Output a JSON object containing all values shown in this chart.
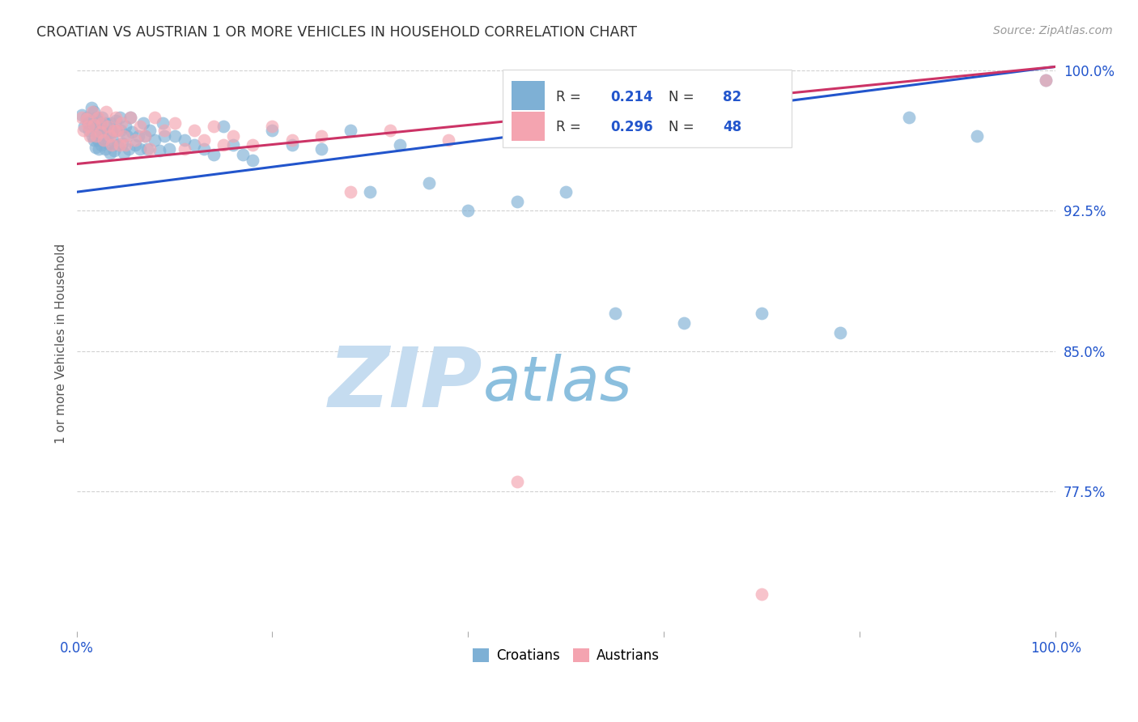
{
  "title": "CROATIAN VS AUSTRIAN 1 OR MORE VEHICLES IN HOUSEHOLD CORRELATION CHART",
  "source": "Source: ZipAtlas.com",
  "ylabel": "1 or more Vehicles in Household",
  "xlim": [
    0.0,
    1.0
  ],
  "ylim": [
    0.7,
    1.008
  ],
  "yticks": [
    0.775,
    0.85,
    0.925,
    1.0
  ],
  "ytick_labels": [
    "77.5%",
    "85.0%",
    "92.5%",
    "100.0%"
  ],
  "xticks": [
    0.0,
    0.2,
    0.4,
    0.6,
    0.8,
    1.0
  ],
  "xtick_labels": [
    "0.0%",
    "",
    "",
    "",
    "",
    "100.0%"
  ],
  "croatians_R": 0.214,
  "croatians_N": 82,
  "austrians_R": 0.296,
  "austrians_N": 48,
  "croatian_color": "#7EB0D5",
  "austrian_color": "#F4A4B0",
  "trendline_croatian_color": "#2255CC",
  "trendline_austrian_color": "#CC3366",
  "croatian_trendline": [
    [
      0.0,
      0.935
    ],
    [
      1.0,
      1.002
    ]
  ],
  "austrian_trendline": [
    [
      0.0,
      0.95
    ],
    [
      1.0,
      1.002
    ]
  ],
  "croatian_x": [
    0.005,
    0.008,
    0.01,
    0.012,
    0.013,
    0.015,
    0.015,
    0.016,
    0.017,
    0.018,
    0.018,
    0.019,
    0.02,
    0.02,
    0.021,
    0.022,
    0.023,
    0.024,
    0.025,
    0.025,
    0.026,
    0.027,
    0.028,
    0.029,
    0.03,
    0.031,
    0.033,
    0.034,
    0.035,
    0.036,
    0.037,
    0.038,
    0.04,
    0.041,
    0.042,
    0.044,
    0.045,
    0.047,
    0.048,
    0.05,
    0.052,
    0.053,
    0.055,
    0.057,
    0.06,
    0.063,
    0.065,
    0.068,
    0.07,
    0.072,
    0.075,
    0.08,
    0.085,
    0.088,
    0.09,
    0.095,
    0.1,
    0.11,
    0.12,
    0.13,
    0.14,
    0.15,
    0.16,
    0.17,
    0.18,
    0.2,
    0.22,
    0.25,
    0.28,
    0.3,
    0.33,
    0.36,
    0.4,
    0.45,
    0.5,
    0.55,
    0.62,
    0.7,
    0.78,
    0.85,
    0.92,
    0.99
  ],
  "croatian_y": [
    0.976,
    0.97,
    0.975,
    0.972,
    0.968,
    0.98,
    0.973,
    0.965,
    0.971,
    0.978,
    0.963,
    0.959,
    0.975,
    0.97,
    0.967,
    0.963,
    0.958,
    0.972,
    0.966,
    0.96,
    0.975,
    0.968,
    0.963,
    0.958,
    0.972,
    0.967,
    0.961,
    0.956,
    0.972,
    0.967,
    0.963,
    0.957,
    0.973,
    0.968,
    0.96,
    0.975,
    0.968,
    0.961,
    0.956,
    0.97,
    0.965,
    0.958,
    0.975,
    0.967,
    0.96,
    0.965,
    0.958,
    0.972,
    0.965,
    0.958,
    0.968,
    0.963,
    0.957,
    0.972,
    0.965,
    0.958,
    0.965,
    0.963,
    0.96,
    0.958,
    0.955,
    0.97,
    0.96,
    0.955,
    0.952,
    0.968,
    0.96,
    0.958,
    0.968,
    0.935,
    0.96,
    0.94,
    0.925,
    0.93,
    0.935,
    0.87,
    0.865,
    0.87,
    0.86,
    0.975,
    0.965,
    0.995
  ],
  "austrian_x": [
    0.005,
    0.007,
    0.01,
    0.012,
    0.014,
    0.016,
    0.018,
    0.02,
    0.022,
    0.024,
    0.026,
    0.028,
    0.03,
    0.032,
    0.034,
    0.036,
    0.038,
    0.04,
    0.042,
    0.044,
    0.046,
    0.048,
    0.05,
    0.055,
    0.06,
    0.065,
    0.07,
    0.075,
    0.08,
    0.09,
    0.1,
    0.11,
    0.12,
    0.13,
    0.14,
    0.15,
    0.16,
    0.18,
    0.2,
    0.22,
    0.25,
    0.28,
    0.32,
    0.38,
    0.45,
    0.55,
    0.7,
    0.99
  ],
  "austrian_y": [
    0.975,
    0.968,
    0.974,
    0.97,
    0.965,
    0.978,
    0.971,
    0.965,
    0.975,
    0.967,
    0.972,
    0.963,
    0.978,
    0.97,
    0.965,
    0.96,
    0.968,
    0.975,
    0.968,
    0.96,
    0.972,
    0.965,
    0.96,
    0.975,
    0.963,
    0.97,
    0.965,
    0.958,
    0.975,
    0.968,
    0.972,
    0.958,
    0.968,
    0.963,
    0.97,
    0.96,
    0.965,
    0.96,
    0.97,
    0.963,
    0.965,
    0.935,
    0.968,
    0.963,
    0.78,
    0.968,
    0.72,
    0.995
  ],
  "watermark_zip": "ZIP",
  "watermark_atlas": "atlas",
  "watermark_color_zip": "#C5DCF0",
  "watermark_color_atlas": "#8BBFDE",
  "background_color": "#FFFFFF",
  "grid_color": "#CCCCCC",
  "tick_color": "#2255CC",
  "title_color": "#333333",
  "source_color": "#999999"
}
